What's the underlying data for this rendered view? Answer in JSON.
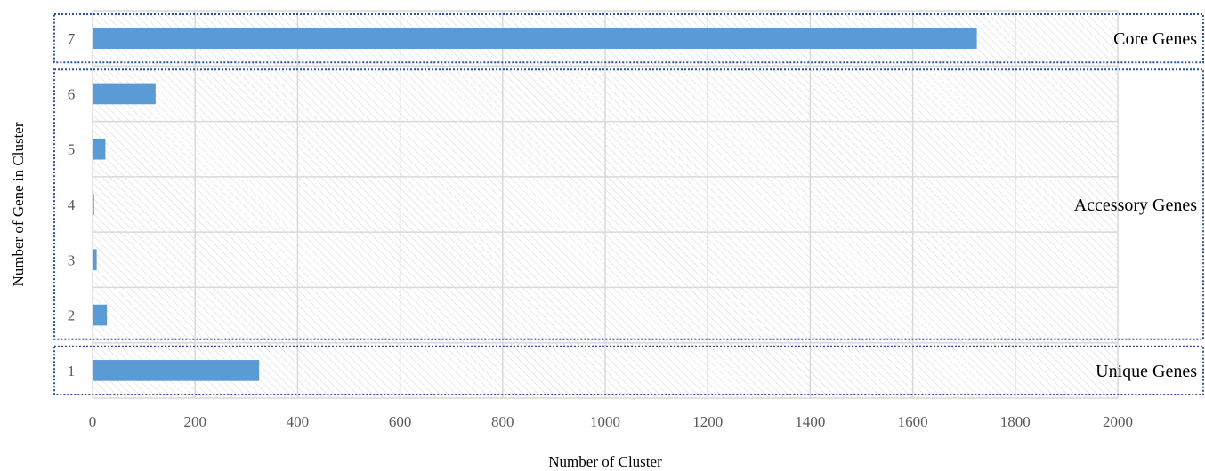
{
  "chart_data": {
    "type": "bar",
    "orientation": "horizontal",
    "categories": [
      "1",
      "2",
      "3",
      "4",
      "5",
      "6",
      "7"
    ],
    "values": [
      325,
      28,
      8,
      3,
      25,
      123,
      1725
    ],
    "xlabel": "Number of Cluster",
    "ylabel": "Number of Gene in Cluster",
    "xlim": [
      0,
      2000
    ],
    "xticks": [
      "0",
      "200",
      "400",
      "600",
      "800",
      "1000",
      "1200",
      "1400",
      "1600",
      "1800",
      "2000"
    ],
    "grid": true,
    "bar_color": "#5b9bd5",
    "groups": [
      {
        "label": "Core Genes",
        "categories": [
          "7"
        ]
      },
      {
        "label": "Accessory Genes",
        "categories": [
          "2",
          "3",
          "4",
          "5",
          "6"
        ]
      },
      {
        "label": "Unique Genes",
        "categories": [
          "1"
        ]
      }
    ],
    "group_border_color": "#2f5597"
  }
}
